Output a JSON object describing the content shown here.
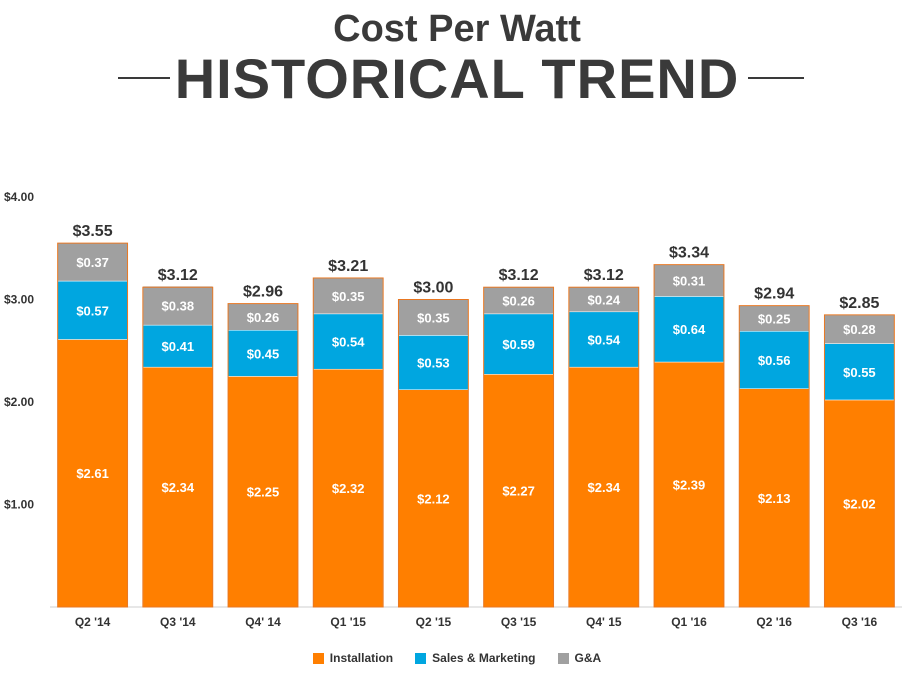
{
  "header": {
    "title_line1": "Cost Per Watt",
    "title_line2": "HISTORICAL TREND"
  },
  "chart_data": {
    "type": "bar",
    "stacked": true,
    "title": "Cost Per Watt — Historical Trend",
    "categories": [
      "Q2 '14",
      "Q3 '14",
      "Q4' 14",
      "Q1 '15",
      "Q2 '15",
      "Q3 '15",
      "Q4' 15",
      "Q1 '16",
      "Q2 '16",
      "Q3 '16"
    ],
    "series": [
      {
        "name": "Installation",
        "color": "#FF7F00",
        "values": [
          2.61,
          2.34,
          2.25,
          2.32,
          2.12,
          2.27,
          2.34,
          2.39,
          2.13,
          2.02
        ],
        "labels": [
          "$2.61",
          "$2.34",
          "$2.25",
          "$2.32",
          "$2.12",
          "$2.27",
          "$2.34",
          "$2.39",
          "$2.13",
          "$2.02"
        ]
      },
      {
        "name": "Sales & Marketing",
        "color": "#00A6E0",
        "values": [
          0.57,
          0.41,
          0.45,
          0.54,
          0.53,
          0.59,
          0.54,
          0.64,
          0.56,
          0.55
        ],
        "labels": [
          "$0.57",
          "$0.41",
          "$0.45",
          "$0.54",
          "$0.53",
          "$0.59",
          "$0.54",
          "$0.64",
          "$0.56",
          "$0.55"
        ]
      },
      {
        "name": "G&A",
        "color": "#A0A0A0",
        "values": [
          0.37,
          0.38,
          0.26,
          0.35,
          0.35,
          0.26,
          0.24,
          0.31,
          0.25,
          0.28
        ],
        "labels": [
          "$0.37",
          "$0.38",
          "$0.26",
          "$0.35",
          "$0.35",
          "$0.26",
          "$0.24",
          "$0.31",
          "$0.25",
          "$0.28"
        ]
      }
    ],
    "totals": [
      3.55,
      3.12,
      2.96,
      3.21,
      3.0,
      3.12,
      3.12,
      3.34,
      2.94,
      2.85
    ],
    "total_labels": [
      "$3.55",
      "$3.12",
      "$2.96",
      "$3.21",
      "$3.00",
      "$3.12",
      "$3.12",
      "$3.34",
      "$2.94",
      "$2.85"
    ],
    "ylim": [
      0,
      4
    ],
    "yticks": [
      1,
      2,
      3,
      4
    ],
    "ytick_labels": [
      "$1.00",
      "$2.00",
      "$3.00",
      "$4.00"
    ],
    "xlabel": "",
    "ylabel": "",
    "legend_position": "bottom"
  }
}
